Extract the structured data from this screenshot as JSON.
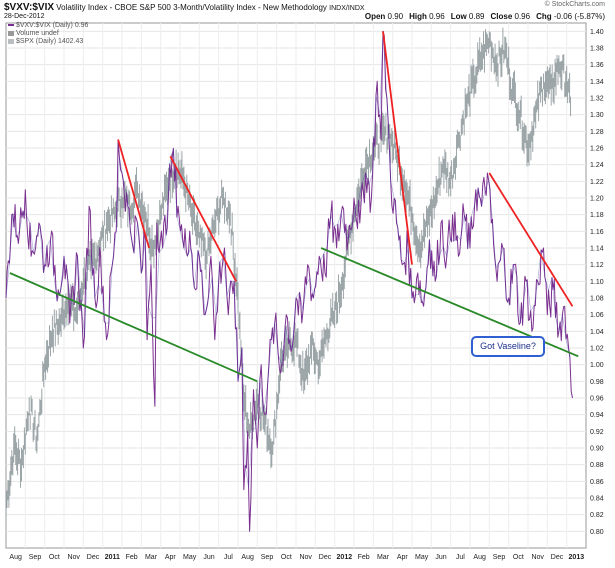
{
  "header": {
    "symbol": "$VXV:$VIX",
    "description": "Volatility Index - CBOE S&P 500 3-Month/Volatility Index - New Methodology",
    "exchange": "INDX/INDX",
    "date": "28-Dec-2012",
    "watermark": "© StockCharts.com",
    "ohlc": [
      {
        "label": "Open",
        "value": "0.90"
      },
      {
        "label": "High",
        "value": "0.96"
      },
      {
        "label": "Low",
        "value": "0.89"
      },
      {
        "label": "Close",
        "value": "0.96"
      },
      {
        "label": "Chg",
        "value": "-0.06 (-5.87%)"
      }
    ]
  },
  "legend": {
    "primary": "$VXV:$VIX (Daily) 0.96",
    "volume": "Volume undef",
    "overlay": "$SPX (Daily) 1402.43"
  },
  "callout": {
    "text": "Got Vaseline?"
  },
  "colors": {
    "ratio_line": "#7a2f8f",
    "ratio_line_alt": "#3a3aa8",
    "spx_bars": "#8c969a",
    "downtrend_lines": "#ee2222",
    "support_lines": "#2a8a2a",
    "callout_border": "#2f5fd0"
  },
  "chart_data": {
    "type": "line",
    "title": "",
    "xlabel": "",
    "ylabel": "",
    "ylim": [
      0.78,
      1.41
    ],
    "y_ticks": [
      "0.80",
      "0.82",
      "0.84",
      "0.86",
      "0.88",
      "0.90",
      "0.92",
      "0.94",
      "0.96",
      "0.98",
      "1.00",
      "1.02",
      "1.04",
      "1.06",
      "1.08",
      "1.10",
      "1.12",
      "1.14",
      "1.16",
      "1.18",
      "1.20",
      "1.22",
      "1.24",
      "1.26",
      "1.28",
      "1.30",
      "1.32",
      "1.34",
      "1.36",
      "1.38",
      "1.40"
    ],
    "x_labels": [
      {
        "t": 0.5,
        "label": "Aug"
      },
      {
        "t": 1.5,
        "label": "Sep"
      },
      {
        "t": 2.5,
        "label": "Oct"
      },
      {
        "t": 3.5,
        "label": "Nov"
      },
      {
        "t": 4.5,
        "label": "Dec"
      },
      {
        "t": 5.5,
        "label": "2011",
        "bold": true
      },
      {
        "t": 6.5,
        "label": "Feb"
      },
      {
        "t": 7.5,
        "label": "Mar"
      },
      {
        "t": 8.5,
        "label": "Apr"
      },
      {
        "t": 9.5,
        "label": "May"
      },
      {
        "t": 10.5,
        "label": "Jun"
      },
      {
        "t": 11.5,
        "label": "Jul"
      },
      {
        "t": 12.5,
        "label": "Aug"
      },
      {
        "t": 13.5,
        "label": "Sep"
      },
      {
        "t": 14.5,
        "label": "Oct"
      },
      {
        "t": 15.5,
        "label": "Nov"
      },
      {
        "t": 16.5,
        "label": "Dec"
      },
      {
        "t": 17.5,
        "label": "2012",
        "bold": true
      },
      {
        "t": 18.5,
        "label": "Feb"
      },
      {
        "t": 19.5,
        "label": "Mar"
      },
      {
        "t": 20.5,
        "label": "Apr"
      },
      {
        "t": 21.5,
        "label": "May"
      },
      {
        "t": 22.5,
        "label": "Jun"
      },
      {
        "t": 23.5,
        "label": "Jul"
      },
      {
        "t": 24.5,
        "label": "Aug"
      },
      {
        "t": 25.5,
        "label": "Sep"
      },
      {
        "t": 26.5,
        "label": "Oct"
      },
      {
        "t": 27.5,
        "label": "Nov"
      },
      {
        "t": 28.5,
        "label": "Dec"
      },
      {
        "t": 29.5,
        "label": "2013",
        "bold": true
      }
    ],
    "series": [
      {
        "name": "$VXV:$VIX (Daily)",
        "points": [
          [
            0.0,
            1.08
          ],
          [
            0.3,
            1.18
          ],
          [
            0.7,
            1.16
          ],
          [
            1.0,
            1.21
          ],
          [
            1.3,
            1.13
          ],
          [
            1.7,
            1.17
          ],
          [
            2.0,
            1.12
          ],
          [
            2.3,
            1.15
          ],
          [
            2.7,
            1.09
          ],
          [
            3.0,
            1.13
          ],
          [
            3.3,
            1.05
          ],
          [
            3.7,
            1.13
          ],
          [
            4.0,
            1.02
          ],
          [
            4.3,
            1.19
          ],
          [
            4.6,
            1.08
          ],
          [
            4.9,
            1.13
          ],
          [
            5.2,
            1.03
          ],
          [
            5.5,
            1.12
          ],
          [
            5.7,
            1.16
          ],
          [
            5.8,
            1.27
          ],
          [
            6.0,
            1.23
          ],
          [
            6.3,
            1.19
          ],
          [
            6.5,
            1.15
          ],
          [
            6.8,
            1.17
          ],
          [
            7.0,
            1.11
          ],
          [
            7.2,
            1.15
          ],
          [
            7.3,
            1.03
          ],
          [
            7.5,
            1.12
          ],
          [
            7.7,
            0.95
          ],
          [
            7.8,
            1.17
          ],
          [
            8.1,
            1.14
          ],
          [
            8.4,
            1.2
          ],
          [
            8.6,
            1.25
          ],
          [
            8.9,
            1.19
          ],
          [
            9.2,
            1.14
          ],
          [
            9.5,
            1.16
          ],
          [
            9.8,
            1.09
          ],
          [
            10.0,
            1.13
          ],
          [
            10.3,
            1.06
          ],
          [
            10.6,
            1.13
          ],
          [
            10.8,
            1.03
          ],
          [
            11.0,
            1.1
          ],
          [
            11.3,
            1.14
          ],
          [
            11.5,
            1.06
          ],
          [
            11.8,
            1.1
          ],
          [
            12.0,
            0.98
          ],
          [
            12.2,
            1.02
          ],
          [
            12.3,
            0.85
          ],
          [
            12.5,
            0.92
          ],
          [
            12.6,
            0.8
          ],
          [
            12.8,
            0.97
          ],
          [
            13.0,
            0.9
          ],
          [
            13.2,
            1.0
          ],
          [
            13.4,
            0.94
          ],
          [
            13.6,
            1.0
          ],
          [
            13.9,
            1.05
          ],
          [
            14.2,
            0.99
          ],
          [
            14.5,
            1.06
          ],
          [
            14.8,
            1.02
          ],
          [
            15.0,
            1.08
          ],
          [
            15.3,
            1.05
          ],
          [
            15.6,
            1.12
          ],
          [
            15.9,
            1.08
          ],
          [
            16.2,
            1.13
          ],
          [
            16.5,
            1.11
          ],
          [
            16.8,
            1.18
          ],
          [
            17.1,
            1.14
          ],
          [
            17.4,
            1.19
          ],
          [
            17.7,
            1.15
          ],
          [
            18.0,
            1.2
          ],
          [
            18.3,
            1.17
          ],
          [
            18.6,
            1.23
          ],
          [
            18.9,
            1.2
          ],
          [
            19.2,
            1.34
          ],
          [
            19.4,
            1.27
          ],
          [
            19.5,
            1.4
          ],
          [
            19.7,
            1.32
          ],
          [
            19.9,
            1.22
          ],
          [
            20.2,
            1.17
          ],
          [
            20.5,
            1.12
          ],
          [
            20.8,
            1.14
          ],
          [
            21.0,
            1.08
          ],
          [
            21.3,
            1.11
          ],
          [
            21.6,
            1.07
          ],
          [
            21.9,
            1.15
          ],
          [
            22.2,
            1.1
          ],
          [
            22.5,
            1.17
          ],
          [
            22.8,
            1.13
          ],
          [
            23.1,
            1.18
          ],
          [
            23.4,
            1.13
          ],
          [
            23.7,
            1.18
          ],
          [
            24.0,
            1.14
          ],
          [
            24.3,
            1.21
          ],
          [
            24.6,
            1.19
          ],
          [
            24.9,
            1.23
          ],
          [
            25.1,
            1.17
          ],
          [
            25.4,
            1.1
          ],
          [
            25.7,
            1.14
          ],
          [
            26.0,
            1.08
          ],
          [
            26.3,
            1.12
          ],
          [
            26.6,
            1.05
          ],
          [
            26.9,
            1.1
          ],
          [
            27.2,
            1.04
          ],
          [
            27.5,
            1.1
          ],
          [
            27.8,
            1.14
          ],
          [
            28.0,
            1.06
          ],
          [
            28.3,
            1.09
          ],
          [
            28.6,
            1.04
          ],
          [
            28.9,
            1.07
          ],
          [
            29.1,
            1.02
          ],
          [
            29.3,
            0.96
          ]
        ]
      },
      {
        "name": "$SPX (Daily)",
        "points": [
          [
            0.0,
            0.83
          ],
          [
            0.4,
            0.9
          ],
          [
            0.8,
            0.88
          ],
          [
            1.2,
            0.95
          ],
          [
            1.6,
            0.91
          ],
          [
            2.0,
            1.0
          ],
          [
            2.4,
            1.04
          ],
          [
            2.8,
            1.05
          ],
          [
            3.2,
            1.08
          ],
          [
            3.6,
            1.06
          ],
          [
            4.0,
            1.1
          ],
          [
            4.4,
            1.12
          ],
          [
            4.8,
            1.14
          ],
          [
            5.2,
            1.17
          ],
          [
            5.6,
            1.18
          ],
          [
            6.0,
            1.2
          ],
          [
            6.4,
            1.19
          ],
          [
            6.8,
            1.21
          ],
          [
            7.2,
            1.18
          ],
          [
            7.6,
            1.14
          ],
          [
            8.0,
            1.18
          ],
          [
            8.4,
            1.22
          ],
          [
            8.8,
            1.24
          ],
          [
            9.2,
            1.22
          ],
          [
            9.6,
            1.18
          ],
          [
            10.0,
            1.15
          ],
          [
            10.4,
            1.13
          ],
          [
            10.8,
            1.17
          ],
          [
            11.2,
            1.2
          ],
          [
            11.6,
            1.18
          ],
          [
            12.0,
            1.08
          ],
          [
            12.3,
            0.96
          ],
          [
            12.6,
            0.92
          ],
          [
            13.0,
            0.96
          ],
          [
            13.4,
            0.93
          ],
          [
            13.8,
            0.9
          ],
          [
            14.2,
            1.0
          ],
          [
            14.6,
            1.02
          ],
          [
            15.0,
            1.03
          ],
          [
            15.4,
            0.98
          ],
          [
            15.8,
            1.02
          ],
          [
            16.2,
            1.0
          ],
          [
            16.6,
            1.04
          ],
          [
            17.0,
            1.06
          ],
          [
            17.4,
            1.1
          ],
          [
            17.8,
            1.16
          ],
          [
            18.2,
            1.2
          ],
          [
            18.6,
            1.24
          ],
          [
            19.0,
            1.26
          ],
          [
            19.4,
            1.27
          ],
          [
            19.8,
            1.28
          ],
          [
            20.2,
            1.25
          ],
          [
            20.6,
            1.22
          ],
          [
            21.0,
            1.18
          ],
          [
            21.4,
            1.14
          ],
          [
            21.8,
            1.17
          ],
          [
            22.2,
            1.2
          ],
          [
            22.6,
            1.24
          ],
          [
            23.0,
            1.22
          ],
          [
            23.4,
            1.27
          ],
          [
            23.8,
            1.31
          ],
          [
            24.2,
            1.34
          ],
          [
            24.6,
            1.37
          ],
          [
            25.0,
            1.39
          ],
          [
            25.4,
            1.36
          ],
          [
            25.8,
            1.38
          ],
          [
            26.2,
            1.33
          ],
          [
            26.6,
            1.3
          ],
          [
            27.0,
            1.26
          ],
          [
            27.4,
            1.3
          ],
          [
            27.8,
            1.34
          ],
          [
            28.2,
            1.33
          ],
          [
            28.6,
            1.36
          ],
          [
            29.0,
            1.34
          ],
          [
            29.2,
            1.31
          ]
        ]
      }
    ],
    "annotations": [
      {
        "kind": "trendline",
        "color": "red",
        "from": [
          5.8,
          1.27
        ],
        "to": [
          7.4,
          1.14
        ]
      },
      {
        "kind": "trendline",
        "color": "red",
        "from": [
          8.5,
          1.25
        ],
        "to": [
          11.9,
          1.1
        ]
      },
      {
        "kind": "trendline",
        "color": "red",
        "from": [
          19.5,
          1.4
        ],
        "to": [
          21.0,
          1.12
        ]
      },
      {
        "kind": "trendline",
        "color": "red",
        "from": [
          25.0,
          1.23
        ],
        "to": [
          29.3,
          1.07
        ]
      },
      {
        "kind": "trendline",
        "color": "green",
        "from": [
          0.2,
          1.11
        ],
        "to": [
          13.0,
          0.98
        ]
      },
      {
        "kind": "trendline",
        "color": "green",
        "from": [
          16.3,
          1.14
        ],
        "to": [
          29.6,
          1.01
        ]
      }
    ]
  }
}
